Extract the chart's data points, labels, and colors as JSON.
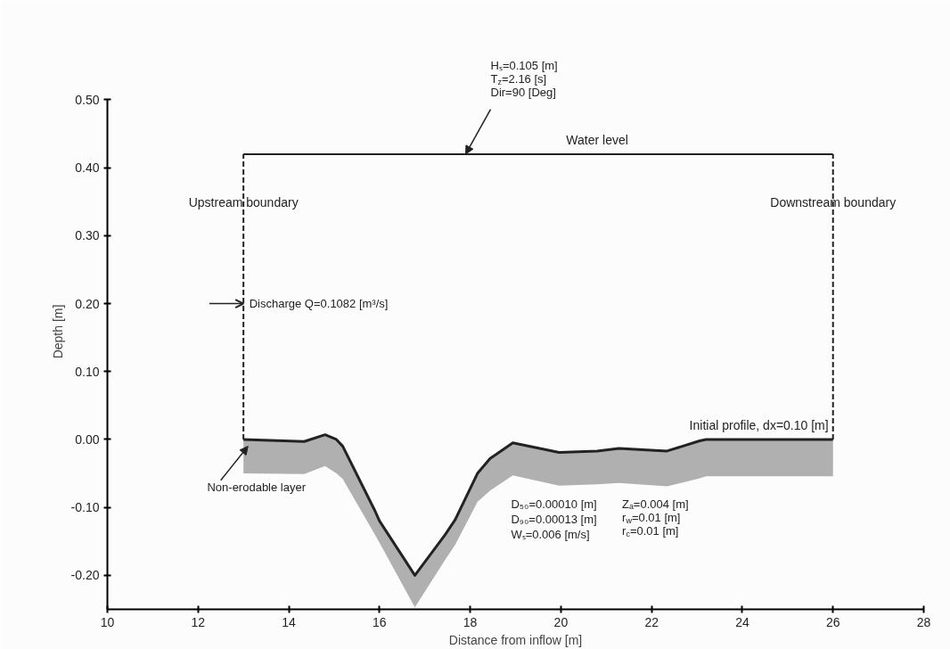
{
  "chart_data": {
    "type": "line",
    "xlabel": "Distance from inflow [m]",
    "ylabel": "Depth [m]",
    "xlim": [
      10,
      28
    ],
    "xticks": [
      10,
      12,
      14,
      16,
      18,
      20,
      22,
      24,
      26,
      28
    ],
    "ylim": [
      -0.25,
      0.5
    ],
    "yticks": [
      {
        "value": -0.2,
        "label": "-0.20"
      },
      {
        "value": -0.1,
        "label": "-0.10"
      },
      {
        "value": 0,
        "label": "0.00"
      },
      {
        "value": 0.1,
        "label": "0.10"
      },
      {
        "value": 0.2,
        "label": "0.20"
      },
      {
        "value": 0.3,
        "label": "0.30"
      },
      {
        "value": 0.4,
        "label": "0.40"
      },
      {
        "value": 0.5,
        "label": "0.50"
      }
    ],
    "grid": false,
    "legend": false,
    "marker": "none",
    "series": [
      {
        "name": "Initial profile, dx=0.10 [m]",
        "color": "#222222",
        "x": [
          13.0,
          14.34,
          14.8,
          15.05,
          15.19,
          15.9,
          16.0,
          16.78,
          17.45,
          17.67,
          18.16,
          18.44,
          18.94,
          19.96,
          20.8,
          21.28,
          22.34,
          23.06,
          23.2,
          26.0
        ],
        "values": [
          0.0,
          -0.003,
          0.007,
          0.0,
          -0.01,
          -0.105,
          -0.12,
          -0.2,
          -0.14,
          -0.118,
          -0.05,
          -0.028,
          -0.005,
          -0.019,
          -0.017,
          -0.013,
          -0.017,
          -0.002,
          0.0,
          0.0
        ],
        "lower": [
          -0.05,
          -0.051,
          -0.039,
          -0.05,
          -0.058,
          -0.14,
          -0.152,
          -0.247,
          -0.177,
          -0.155,
          -0.092,
          -0.075,
          -0.053,
          -0.068,
          -0.066,
          -0.064,
          -0.069,
          -0.057,
          -0.054,
          -0.054
        ],
        "upper": [
          0.0,
          -0.003,
          0.007,
          0.0,
          -0.01,
          -0.105,
          -0.12,
          -0.2,
          -0.14,
          -0.118,
          -0.05,
          -0.028,
          -0.005,
          -0.019,
          -0.017,
          -0.013,
          -0.017,
          -0.002,
          0.0,
          0.0
        ]
      },
      {
        "name": "Water level",
        "color": "#222222",
        "x": [
          13,
          26
        ],
        "values": [
          0.42,
          0.42
        ]
      },
      {
        "name": "Upstream boundary",
        "color": "#222222",
        "line_style": "dashed",
        "x": [
          13,
          13
        ],
        "values": [
          0.0,
          0.42
        ]
      },
      {
        "name": "Downstream boundary",
        "color": "#222222",
        "line_style": "dashed",
        "x": [
          26,
          26
        ],
        "values": [
          0.0,
          0.42
        ]
      }
    ],
    "annotations": [
      {
        "text": "Hₛ=0.105 [m]\nT$_{z}$=2.16 [s]\nDir=90 [Deg]",
        "x": 17.9,
        "y": 0.42
      },
      {
        "text": "Discharge Q=0.1082 [m³/s]",
        "x": 13,
        "y": 0.2
      },
      "Non-erodable layer",
      "D₅₀=0.00010 [m]\nD₉₀=0.00013 [m]\nWₛ=0.006 [m/s]",
      "Zₐ=0.004 [m]\nr$_{w}$=0.01 [m]\nr$_{c}$=0.01 [m]"
    ]
  }
}
